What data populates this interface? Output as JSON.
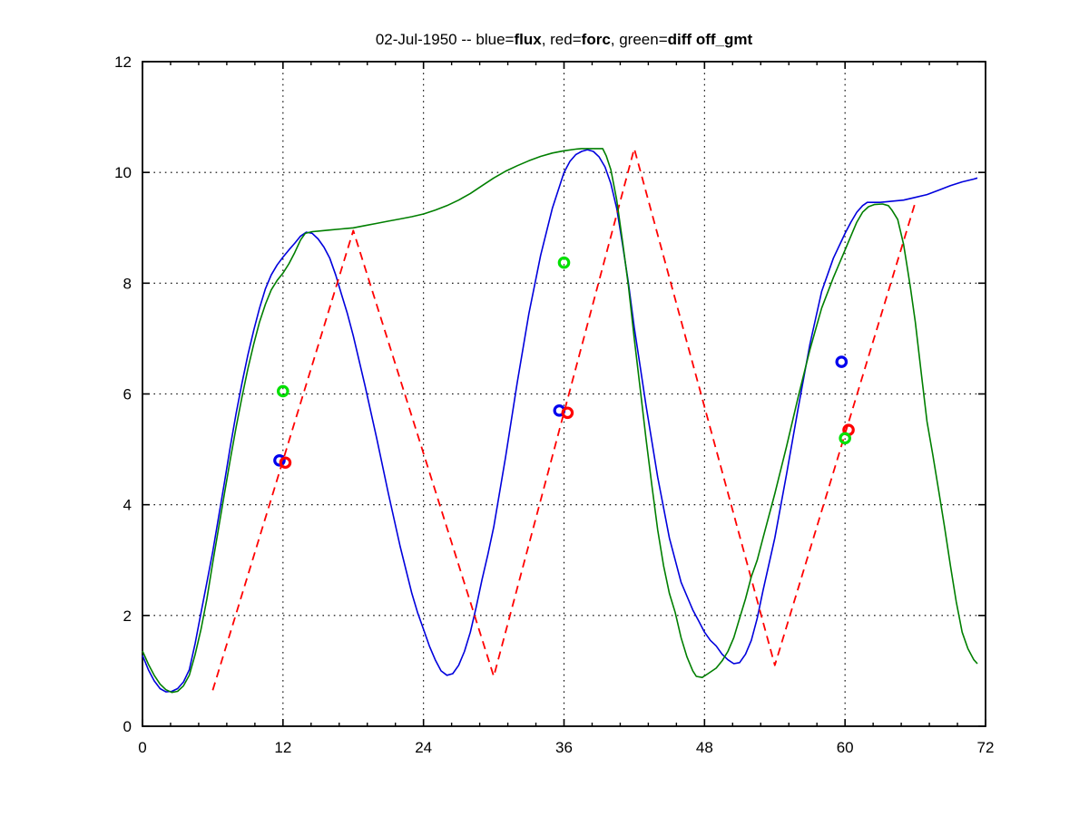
{
  "chart_data": {
    "type": "line",
    "title_text": "02-Jul-1950 -- blue=flux, red=forc, green=diff off_gmt",
    "title_segments": [
      {
        "text": "02-Jul-1950 -- blue=",
        "bold": false
      },
      {
        "text": "flux",
        "bold": true
      },
      {
        "text": ", red=",
        "bold": false
      },
      {
        "text": "forc",
        "bold": true
      },
      {
        "text": ", green=",
        "bold": false
      },
      {
        "text": "diff",
        "bold": true
      },
      {
        "text": " ",
        "bold": false
      },
      {
        "text": "off_gmt",
        "bold": true
      }
    ],
    "xlabel": "",
    "ylabel": "",
    "xlim": [
      0,
      72
    ],
    "ylim": [
      0,
      12
    ],
    "xticks": [
      0,
      12,
      24,
      36,
      48,
      60,
      72
    ],
    "yticks": [
      0,
      2,
      4,
      6,
      8,
      10,
      12
    ],
    "x_minor_tick_step": 2.4,
    "grid": "dotted black grid at interior major ticks, box on, ticks inward on all sides",
    "legend_position": "none (legend encoded in title)",
    "axis_color": "#000000",
    "series": [
      {
        "name": "flux",
        "data_name": "flux-line",
        "color": "#0000dd",
        "style": "solid",
        "points": [
          [
            0,
            1.28
          ],
          [
            0.5,
            1.02
          ],
          [
            1,
            0.82
          ],
          [
            1.5,
            0.68
          ],
          [
            2,
            0.62
          ],
          [
            2.5,
            0.63
          ],
          [
            3,
            0.68
          ],
          [
            3.5,
            0.8
          ],
          [
            4,
            1.02
          ],
          [
            4.5,
            1.5
          ],
          [
            5,
            2.05
          ],
          [
            5.5,
            2.6
          ],
          [
            6,
            3.15
          ],
          [
            6.5,
            3.78
          ],
          [
            7,
            4.4
          ],
          [
            7.5,
            5.05
          ],
          [
            8,
            5.65
          ],
          [
            8.5,
            6.2
          ],
          [
            9,
            6.7
          ],
          [
            9.5,
            7.15
          ],
          [
            10,
            7.55
          ],
          [
            10.5,
            7.9
          ],
          [
            11,
            8.15
          ],
          [
            11.5,
            8.33
          ],
          [
            12,
            8.47
          ],
          [
            12.5,
            8.6
          ],
          [
            13,
            8.72
          ],
          [
            13.5,
            8.85
          ],
          [
            14,
            8.92
          ],
          [
            14.5,
            8.9
          ],
          [
            15,
            8.8
          ],
          [
            15.5,
            8.65
          ],
          [
            16,
            8.45
          ],
          [
            16.5,
            8.15
          ],
          [
            17,
            7.8
          ],
          [
            17.5,
            7.45
          ],
          [
            18,
            7.05
          ],
          [
            19,
            6.15
          ],
          [
            20,
            5.2
          ],
          [
            21,
            4.2
          ],
          [
            22,
            3.25
          ],
          [
            23,
            2.4
          ],
          [
            23.5,
            2.05
          ],
          [
            24,
            1.75
          ],
          [
            24.5,
            1.45
          ],
          [
            25,
            1.2
          ],
          [
            25.5,
            1.0
          ],
          [
            26,
            0.92
          ],
          [
            26.5,
            0.95
          ],
          [
            27,
            1.1
          ],
          [
            27.5,
            1.35
          ],
          [
            28,
            1.7
          ],
          [
            28.5,
            2.15
          ],
          [
            29,
            2.65
          ],
          [
            29.5,
            3.1
          ],
          [
            30,
            3.6
          ],
          [
            31,
            4.85
          ],
          [
            32,
            6.2
          ],
          [
            33,
            7.45
          ],
          [
            34,
            8.5
          ],
          [
            35,
            9.35
          ],
          [
            36,
            10.0
          ],
          [
            36.5,
            10.2
          ],
          [
            37,
            10.32
          ],
          [
            37.5,
            10.38
          ],
          [
            38,
            10.41
          ],
          [
            38.5,
            10.38
          ],
          [
            39,
            10.28
          ],
          [
            39.5,
            10.1
          ],
          [
            40,
            9.8
          ],
          [
            40.5,
            9.35
          ],
          [
            41,
            8.7
          ],
          [
            41.5,
            8.0
          ],
          [
            42,
            7.2
          ],
          [
            42.5,
            6.5
          ],
          [
            43,
            5.8
          ],
          [
            44,
            4.5
          ],
          [
            45,
            3.4
          ],
          [
            46,
            2.6
          ],
          [
            47,
            2.1
          ],
          [
            47.5,
            1.9
          ],
          [
            48,
            1.7
          ],
          [
            48.5,
            1.55
          ],
          [
            49,
            1.45
          ],
          [
            49.5,
            1.3
          ],
          [
            50,
            1.2
          ],
          [
            50.5,
            1.13
          ],
          [
            51,
            1.15
          ],
          [
            51.5,
            1.3
          ],
          [
            52,
            1.55
          ],
          [
            52.5,
            1.95
          ],
          [
            53,
            2.45
          ],
          [
            54,
            3.4
          ],
          [
            55,
            4.55
          ],
          [
            56,
            5.75
          ],
          [
            57,
            6.9
          ],
          [
            58,
            7.85
          ],
          [
            59,
            8.45
          ],
          [
            60,
            8.9
          ],
          [
            60.5,
            9.1
          ],
          [
            61,
            9.28
          ],
          [
            61.5,
            9.4
          ],
          [
            61.9,
            9.46
          ],
          [
            63,
            9.46
          ],
          [
            64,
            9.48
          ],
          [
            65,
            9.5
          ],
          [
            66,
            9.55
          ],
          [
            67,
            9.6
          ],
          [
            68,
            9.68
          ],
          [
            69,
            9.76
          ],
          [
            70,
            9.83
          ],
          [
            71,
            9.88
          ],
          [
            71.3,
            9.9
          ]
        ]
      },
      {
        "name": "forc",
        "data_name": "forc-line",
        "color": "#ff0000",
        "style": "dashed",
        "points": [
          [
            6,
            0.65
          ],
          [
            18,
            8.95
          ],
          [
            30,
            0.9
          ],
          [
            42,
            10.43
          ],
          [
            54,
            1.1
          ],
          [
            66,
            9.46
          ]
        ]
      },
      {
        "name": "diff",
        "data_name": "diff-line",
        "color": "#007f00",
        "style": "solid",
        "points": [
          [
            0,
            1.36
          ],
          [
            0.5,
            1.12
          ],
          [
            1,
            0.92
          ],
          [
            1.5,
            0.76
          ],
          [
            2,
            0.66
          ],
          [
            2.5,
            0.61
          ],
          [
            3,
            0.63
          ],
          [
            3.5,
            0.73
          ],
          [
            4,
            0.92
          ],
          [
            4.5,
            1.3
          ],
          [
            5,
            1.75
          ],
          [
            5.5,
            2.3
          ],
          [
            6,
            2.95
          ],
          [
            6.5,
            3.58
          ],
          [
            7,
            4.2
          ],
          [
            7.5,
            4.82
          ],
          [
            8,
            5.4
          ],
          [
            8.5,
            5.95
          ],
          [
            9,
            6.45
          ],
          [
            9.5,
            6.9
          ],
          [
            10,
            7.3
          ],
          [
            10.5,
            7.62
          ],
          [
            11,
            7.88
          ],
          [
            11.5,
            8.05
          ],
          [
            12,
            8.18
          ],
          [
            12.5,
            8.35
          ],
          [
            13,
            8.55
          ],
          [
            13.5,
            8.78
          ],
          [
            13.9,
            8.9
          ],
          [
            14.5,
            8.93
          ],
          [
            15,
            8.94
          ],
          [
            16,
            8.96
          ],
          [
            17,
            8.98
          ],
          [
            18,
            9.0
          ],
          [
            19,
            9.04
          ],
          [
            20,
            9.08
          ],
          [
            21,
            9.12
          ],
          [
            22,
            9.16
          ],
          [
            23,
            9.2
          ],
          [
            24,
            9.25
          ],
          [
            25,
            9.32
          ],
          [
            26,
            9.4
          ],
          [
            27,
            9.5
          ],
          [
            28,
            9.62
          ],
          [
            29,
            9.76
          ],
          [
            30,
            9.9
          ],
          [
            31,
            10.02
          ],
          [
            32,
            10.12
          ],
          [
            33,
            10.21
          ],
          [
            34,
            10.29
          ],
          [
            35,
            10.35
          ],
          [
            36,
            10.39
          ],
          [
            37,
            10.42
          ],
          [
            37.5,
            10.43
          ],
          [
            39.3,
            10.43
          ],
          [
            39.6,
            10.3
          ],
          [
            40,
            10.05
          ],
          [
            40.5,
            9.5
          ],
          [
            41,
            8.75
          ],
          [
            41.5,
            7.95
          ],
          [
            42,
            7.0
          ],
          [
            42.5,
            6.1
          ],
          [
            43,
            5.2
          ],
          [
            43.5,
            4.35
          ],
          [
            44,
            3.55
          ],
          [
            44.5,
            2.9
          ],
          [
            45,
            2.4
          ],
          [
            45.5,
            2.05
          ],
          [
            46,
            1.6
          ],
          [
            46.5,
            1.25
          ],
          [
            47,
            1.0
          ],
          [
            47.3,
            0.9
          ],
          [
            47.8,
            0.88
          ],
          [
            48.3,
            0.95
          ],
          [
            49,
            1.05
          ],
          [
            49.5,
            1.18
          ],
          [
            50,
            1.35
          ],
          [
            50.5,
            1.6
          ],
          [
            51,
            1.95
          ],
          [
            51.5,
            2.3
          ],
          [
            52,
            2.7
          ],
          [
            52.5,
            3.0
          ],
          [
            53,
            3.4
          ],
          [
            54,
            4.2
          ],
          [
            55,
            5.05
          ],
          [
            56,
            5.95
          ],
          [
            57,
            6.8
          ],
          [
            58,
            7.55
          ],
          [
            59,
            8.1
          ],
          [
            59.5,
            8.35
          ],
          [
            60,
            8.6
          ],
          [
            60.5,
            8.85
          ],
          [
            61,
            9.1
          ],
          [
            61.5,
            9.28
          ],
          [
            62,
            9.38
          ],
          [
            62.5,
            9.42
          ],
          [
            63.2,
            9.43
          ],
          [
            63.7,
            9.4
          ],
          [
            64,
            9.32
          ],
          [
            64.5,
            9.15
          ],
          [
            65,
            8.7
          ],
          [
            65.3,
            8.3
          ],
          [
            65.6,
            7.9
          ],
          [
            66,
            7.3
          ],
          [
            66.5,
            6.4
          ],
          [
            67,
            5.5
          ],
          [
            67.5,
            4.9
          ],
          [
            68,
            4.25
          ],
          [
            68.5,
            3.6
          ],
          [
            69,
            2.9
          ],
          [
            69.5,
            2.25
          ],
          [
            70,
            1.7
          ],
          [
            70.5,
            1.4
          ],
          [
            71,
            1.2
          ],
          [
            71.3,
            1.13
          ]
        ]
      }
    ],
    "markers": [
      {
        "name": "flux circle markers",
        "data_name": "flux-marker",
        "color": "#0000ee",
        "shape": "open-circle",
        "points": [
          [
            11.7,
            4.8
          ],
          [
            35.6,
            5.7
          ],
          [
            59.7,
            6.58
          ]
        ]
      },
      {
        "name": "forc circle markers",
        "data_name": "forc-marker",
        "color": "#ff0000",
        "shape": "open-circle",
        "points": [
          [
            12.2,
            4.76
          ],
          [
            36.3,
            5.66
          ],
          [
            60.3,
            5.35
          ]
        ]
      },
      {
        "name": "diff circle markers",
        "data_name": "diff-marker",
        "color": "#00e000",
        "shape": "open-circle",
        "points": [
          [
            12.0,
            6.05
          ],
          [
            36.0,
            8.37
          ],
          [
            60.0,
            5.2
          ]
        ]
      }
    ]
  }
}
